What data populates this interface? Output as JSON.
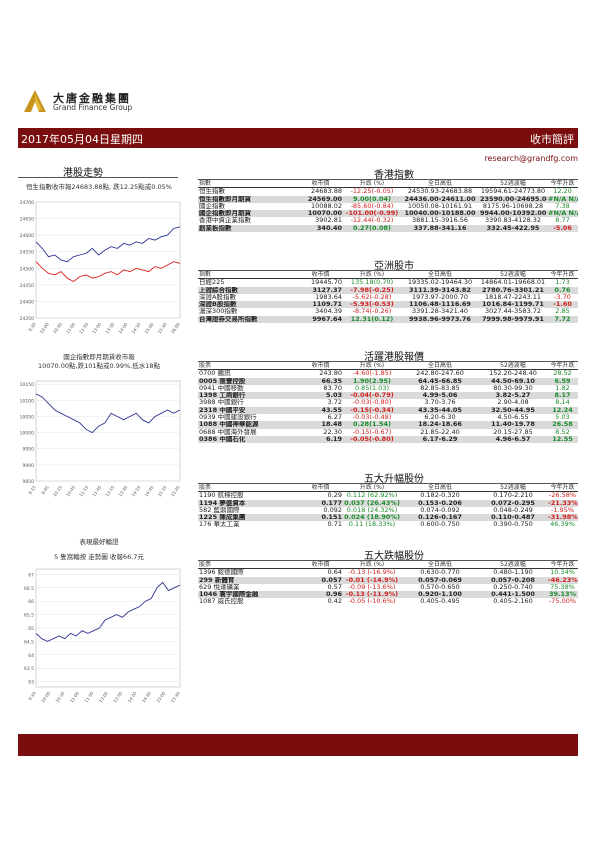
{
  "brand": {
    "cn": "大唐金融集團",
    "en": "Grand Finance Group"
  },
  "banner": {
    "date": "2017年05月04日星期四",
    "title": "收市簡評"
  },
  "email": "research@grandfg.com",
  "colors": {
    "banner": "#7a0e0e",
    "negative": "#d0201e",
    "positive": "#1a8c2a",
    "highlight_row": "#dadada",
    "line_blue": "#2c3590",
    "line_red": "#d82020"
  },
  "left": {
    "title": "港股走勢",
    "hsi_caption": "恒生指數收市報24683.88點, 跌12.25點或0.05%",
    "afternoon": {
      "caption_1": "國企指數即月期貨收市報",
      "caption_2": "10070.00點,跌101點或0.99%,低水18點"
    },
    "warrant": {
      "caption_1": "表現最好輪證",
      "caption_2": "5 隻窩輪按 走勢圖  收報66.7元"
    }
  },
  "chart_data": [
    {
      "type": "line",
      "y_ticks": [
        "24700",
        "24650",
        "24600",
        "24550",
        "24500",
        "24450",
        "24400",
        "24350"
      ],
      "ylim": [
        24350,
        24700
      ],
      "x_ticks": [
        "9:30",
        "10:00",
        "10:30",
        "11:00",
        "11:30",
        "13:00",
        "13:30",
        "14:00",
        "14:30",
        "15:00",
        "15:30",
        "16:00"
      ],
      "series": [
        {
          "values": [
            24580,
            24560,
            24535,
            24540,
            24525,
            24520,
            24535,
            24540,
            24545,
            24560,
            24540,
            24555,
            24565,
            24560,
            24575,
            24570,
            24580,
            24575,
            24590,
            24585,
            24595,
            24600,
            24620,
            24625
          ]
        },
        {
          "values": [
            24520,
            24500,
            24485,
            24480,
            24490,
            24470,
            24460,
            24475,
            24480,
            24470,
            24475,
            24485,
            24490,
            24480,
            24495,
            24490,
            24500,
            24495,
            24490,
            24505,
            24500,
            24510,
            24520,
            24515
          ]
        }
      ]
    },
    {
      "type": "line",
      "y_ticks": [
        "10150",
        "10100",
        "10050",
        "10000",
        "9950",
        "9900",
        "9850"
      ],
      "ylim": [
        9850,
        10160
      ],
      "x_ticks": [
        "9:15",
        "9:45",
        "10:15",
        "10:45",
        "11:15",
        "11:45",
        "13:15",
        "13:45",
        "14:15",
        "14:45",
        "15:15",
        "15:45"
      ],
      "series": [
        {
          "values": [
            10120,
            10110,
            10090,
            10070,
            10060,
            10050,
            10040,
            10030,
            10010,
            10000,
            10020,
            10030,
            10060,
            10050,
            10040,
            10050,
            10060,
            10040,
            10030,
            10050,
            10060,
            10070,
            10060,
            10070
          ]
        }
      ]
    },
    {
      "type": "line",
      "y_ticks": [
        "67",
        "66.5",
        "66",
        "65.5",
        "65",
        "64.5",
        "64",
        "63.5",
        "63"
      ],
      "ylim": [
        62.8,
        67.2
      ],
      "x_ticks": [
        "9:30",
        "10:00",
        "10:30",
        "11:00",
        "11:30",
        "13:00",
        "13:30",
        "14:00",
        "14:30",
        "15:00",
        "15:30"
      ],
      "series": [
        {
          "values": [
            64.8,
            64.6,
            64.5,
            64.6,
            64.7,
            64.6,
            64.8,
            64.7,
            64.9,
            64.8,
            64.9,
            65.0,
            65.3,
            65.4,
            65.5,
            65.4,
            65.6,
            65.7,
            65.8,
            66.0,
            66.1,
            66.5,
            66.7,
            66.4,
            66.5,
            66.6
          ]
        }
      ]
    }
  ],
  "hk_index": {
    "title": "香港指數",
    "headers": [
      "指數",
      "收市價",
      "升跌 (%)",
      "全日高低",
      "52週波幅",
      "今年升跌"
    ],
    "rows": [
      {
        "name": "恒生指數",
        "close": "24683.88",
        "chg": "-12.25(-0.05)",
        "range": "24530.93-24683.88",
        "wk52": "19594.61-24773.80",
        "ytd": "12.20",
        "chg_cls": "neg",
        "ytd_cls": "pos",
        "hl": false
      },
      {
        "name": "恒生指數即月期貨",
        "close": "24569.00",
        "chg": "9.00(0.04)",
        "range": "24436.00-24611.00",
        "wk52": "23590.00-24695.00",
        "ytd": "#N/A N/A",
        "chg_cls": "pos",
        "ytd_cls": "pos",
        "hl": true
      },
      {
        "name": "國企指數",
        "close": "10088.02",
        "chg": "-85.60(-0.84)",
        "range": "10050.08-10161.91",
        "wk52": "8175.96-10698.28",
        "ytd": "7.38",
        "chg_cls": "neg",
        "ytd_cls": "pos",
        "hl": false
      },
      {
        "name": "國企指數即月期貨",
        "close": "10070.00",
        "chg": "-101.00(-0.99)",
        "range": "10040.00-10188.00",
        "wk52": "9944.00-10392.00",
        "ytd": "#N/A N/A",
        "chg_cls": "neg",
        "ytd_cls": "pos",
        "hl": true
      },
      {
        "name": "香港中資企業指數",
        "close": "3902.81",
        "chg": "-12.44(-0.32)",
        "range": "3881.15-3916.56",
        "wk52": "3390.83-4128.32",
        "ytd": "8.77",
        "chg_cls": "neg",
        "ytd_cls": "pos",
        "hl": false
      },
      {
        "name": "創業板指數",
        "close": "340.40",
        "chg": "0.27(0.08)",
        "range": "337.88-341.16",
        "wk52": "332.45-422.95",
        "ytd": "-5.06",
        "chg_cls": "pos",
        "ytd_cls": "neg",
        "hl": true
      }
    ]
  },
  "asia": {
    "title": "亞洲股市",
    "headers": [
      "指數",
      "收市價",
      "升跌 (%)",
      "全日高低",
      "52週波幅",
      "今年升跌"
    ],
    "rows": [
      {
        "name": "日經225",
        "close": "19445.70",
        "chg": "135.18(0.70)",
        "range": "19335.02-19464.30",
        "wk52": "14864.01-19668.01",
        "ytd": "1.73",
        "chg_cls": "pos",
        "ytd_cls": "pos",
        "hl": false
      },
      {
        "name": "上證綜合指數",
        "close": "3127.37",
        "chg": "-7.98(-0.25)",
        "range": "3111.39-3143.82",
        "wk52": "2780.76-3301.21",
        "ytd": "0.76",
        "chg_cls": "neg",
        "ytd_cls": "pos",
        "hl": true
      },
      {
        "name": "深證A股指數",
        "close": "1983.64",
        "chg": "-5.62(-0.28)",
        "range": "1973.97-2000.70",
        "wk52": "1818.47-2243.11",
        "ytd": "-3.70",
        "chg_cls": "neg",
        "ytd_cls": "neg",
        "hl": false
      },
      {
        "name": "深證B股指數",
        "close": "1109.71",
        "chg": "-5.93(-0.53)",
        "range": "1106.48-1116.69",
        "wk52": "1016.84-1199.71",
        "ytd": "-1.60",
        "chg_cls": "neg",
        "ytd_cls": "neg",
        "hl": true
      },
      {
        "name": "滬深300指數",
        "close": "3404.39",
        "chg": "-8.74(-0.26)",
        "range": "3391.28-3421.40",
        "wk52": "3027.44-3583.72",
        "ytd": "2.85",
        "chg_cls": "neg",
        "ytd_cls": "pos",
        "hl": false
      },
      {
        "name": "台灣證券交易所指數",
        "close": "9967.64",
        "chg": "12.31(0.12)",
        "range": "9938.96-9973.76",
        "wk52": "7999.98-9979.91",
        "ytd": "7.72",
        "chg_cls": "pos",
        "ytd_cls": "pos",
        "hl": true
      }
    ]
  },
  "active": {
    "title": "活躍港股報價",
    "headers": [
      "股票",
      "收市價",
      "升跌 (%)",
      "全日高低",
      "52週波幅",
      "今年升跌"
    ],
    "rows": [
      {
        "name": "0700 騰訊",
        "close": "243.80",
        "chg": "-4.60(-1.85)",
        "range": "242.80-247.60",
        "wk52": "152.20-248.40",
        "ytd": "28.52",
        "chg_cls": "neg",
        "ytd_cls": "pos",
        "hl": false
      },
      {
        "name": "0005 匯豐控股",
        "close": "66.35",
        "chg": "1.90(2.95)",
        "range": "64.45-66.85",
        "wk52": "44.50-69.10",
        "ytd": "6.59",
        "chg_cls": "pos",
        "ytd_cls": "pos",
        "hl": true
      },
      {
        "name": "0941 中國移動",
        "close": "83.70",
        "chg": "0.85(1.03)",
        "range": "82.85-83.85",
        "wk52": "80.30-99.30",
        "ytd": "1.82",
        "chg_cls": "pos",
        "ytd_cls": "pos",
        "hl": false
      },
      {
        "name": "1398 工商銀行",
        "close": "5.03",
        "chg": "-0.04(-0.79)",
        "range": "4.99-5.06",
        "wk52": "3.82-5.27",
        "ytd": "8.17",
        "chg_cls": "neg",
        "ytd_cls": "pos",
        "hl": true
      },
      {
        "name": "3988 中國銀行",
        "close": "3.72",
        "chg": "-0.03(-0.80)",
        "range": "3.70-3.76",
        "wk52": "2.90-4.08",
        "ytd": "8.14",
        "chg_cls": "neg",
        "ytd_cls": "pos",
        "hl": false
      },
      {
        "name": "2318 中國平安",
        "close": "43.55",
        "chg": "-0.15(-0.34)",
        "range": "43.35-44.05",
        "wk52": "32.50-44.95",
        "ytd": "12.24",
        "chg_cls": "neg",
        "ytd_cls": "pos",
        "hl": true
      },
      {
        "name": "0939 中國建設銀行",
        "close": "6.27",
        "chg": "-0.03(-0.48)",
        "range": "6.20-6.30",
        "wk52": "4.50-6.55",
        "ytd": "5.03",
        "chg_cls": "neg",
        "ytd_cls": "pos",
        "hl": false
      },
      {
        "name": "1088 中國神華能源",
        "close": "18.48",
        "chg": "0.28(1.54)",
        "range": "18.24-18.66",
        "wk52": "11.40-19.78",
        "ytd": "26.58",
        "chg_cls": "pos",
        "ytd_cls": "pos",
        "hl": true
      },
      {
        "name": "0688 中國海外發展",
        "close": "22.30",
        "chg": "-0.15(-0.67)",
        "range": "21.85-22.40",
        "wk52": "20.15-27.85",
        "ytd": "8.52",
        "chg_cls": "neg",
        "ytd_cls": "pos",
        "hl": false
      },
      {
        "name": "0386 中國石化",
        "close": "6.19",
        "chg": "-0.05(-0.80)",
        "range": "6.17-6.29",
        "wk52": "4.96-6.57",
        "ytd": "12.55",
        "chg_cls": "neg",
        "ytd_cls": "pos",
        "hl": true
      }
    ]
  },
  "gainers": {
    "title": "五大升幅股份",
    "headers": [
      "股票",
      "收市價",
      "升跌 (%)",
      "全日高低",
      "52週波幅",
      "今年升跌"
    ],
    "rows": [
      {
        "name": "1190 航標控股",
        "close": "0.29",
        "chg": "0.112 (62.92%)",
        "range": "0.182-0.320",
        "wk52": "0.170-2.210",
        "ytd": "-26.58%",
        "chg_cls": "pos",
        "ytd_cls": "neg",
        "hl": false
      },
      {
        "name": "1194 夢盛資本",
        "close": "0.177",
        "chg": "0.037 (26.43%)",
        "range": "0.153-0.206",
        "wk52": "0.072-0.295",
        "ytd": "-21.33%",
        "chg_cls": "pos",
        "ytd_cls": "neg",
        "hl": true
      },
      {
        "name": "582 藍鼎國際",
        "close": "0.092",
        "chg": "0.018 (24.32%)",
        "range": "0.074-0.092",
        "wk52": "0.048-0.249",
        "ytd": "-1.95%",
        "chg_cls": "pos",
        "ytd_cls": "neg",
        "hl": false
      },
      {
        "name": "1225 陳成集團",
        "close": "0.151",
        "chg": "0.024 (18.90%)",
        "range": "0.126-0.167",
        "wk52": "0.110-0.487",
        "ytd": "-31.98%",
        "chg_cls": "pos",
        "ytd_cls": "neg",
        "hl": true
      },
      {
        "name": "176 華太工業",
        "close": "0.71",
        "chg": "0.11 (18.33%)",
        "range": "0.600-0.750",
        "wk52": "0.390-0.750",
        "ytd": "46.39%",
        "chg_cls": "pos",
        "ytd_cls": "pos",
        "hl": false
      }
    ]
  },
  "losers": {
    "title": "五大跌幅股份",
    "headers": [
      "股票",
      "收市價",
      "升跌 (%)",
      "全日高低",
      "52週波幅",
      "今年升跌"
    ],
    "rows": [
      {
        "name": "1396 毅德國際",
        "close": "0.64",
        "chg": "-0.13 (-16.9%)",
        "range": "0.630-0.770",
        "wk52": "0.480-1.190",
        "ytd": "10.34%",
        "chg_cls": "neg",
        "ytd_cls": "pos",
        "hl": false
      },
      {
        "name": "299 新體育",
        "close": "0.057",
        "chg": "-0.01 (-14.9%)",
        "range": "0.057-0.069",
        "wk52": "0.057-0.208",
        "ytd": "-46.23%",
        "chg_cls": "neg",
        "ytd_cls": "neg",
        "hl": true
      },
      {
        "name": "629 悅達礦業",
        "close": "0.57",
        "chg": "-0.09 (-13.6%)",
        "range": "0.570-0.650",
        "wk52": "0.250-0.740",
        "ytd": "75.38%",
        "chg_cls": "neg",
        "ytd_cls": "pos",
        "hl": false
      },
      {
        "name": "1046 寰宇國際金融",
        "close": "0.96",
        "chg": "-0.13 (-11.9%)",
        "range": "0.920-1.100",
        "wk52": "0.441-1.500",
        "ytd": "39.13%",
        "chg_cls": "neg",
        "ytd_cls": "pos",
        "hl": true
      },
      {
        "name": "1087 威氏控股",
        "close": "0.42",
        "chg": "-0.05 (-10.6%)",
        "range": "0.405-0.495",
        "wk52": "0.405-2.160",
        "ytd": "-75.00%",
        "chg_cls": "neg",
        "ytd_cls": "neg",
        "hl": false
      }
    ]
  }
}
